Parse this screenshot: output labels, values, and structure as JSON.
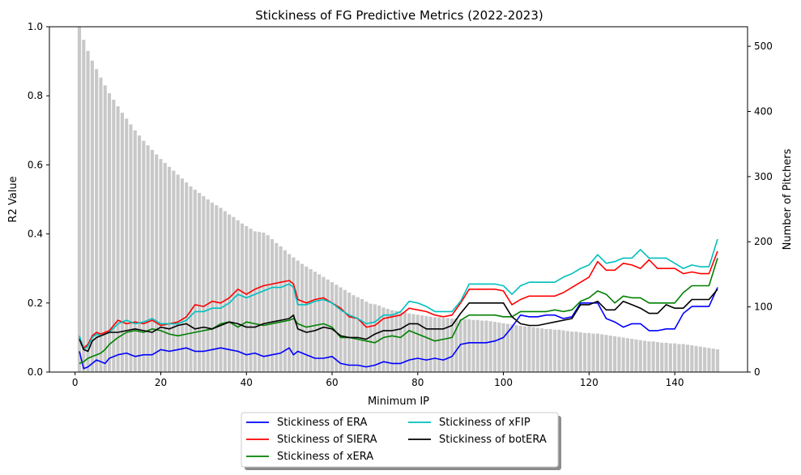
{
  "chart_data": {
    "type": "bar",
    "title": "Stickiness of FG Predictive Metrics (2022-2023)",
    "xlabel": "Minimum IP",
    "ylabel": "R2 Value",
    "ylabel_right": "Number of Pitchers",
    "xlim": [
      -6,
      157
    ],
    "ylim": [
      0,
      1
    ],
    "ylim_right": [
      0,
      530
    ],
    "xticks": [
      "0",
      "20",
      "40",
      "60",
      "80",
      "100",
      "120",
      "140"
    ],
    "yticks": [
      "0.0",
      "0.2",
      "0.4",
      "0.6",
      "0.8",
      "1.0"
    ],
    "yticks_right": [
      "0",
      "100",
      "200",
      "300",
      "400",
      "500"
    ],
    "grid": false,
    "legend_position": "below-center",
    "bars": {
      "name": "Number of Pitchers",
      "color": "#c8c8c8",
      "x_start": 1,
      "x_end": 150,
      "values": [
        530,
        510,
        493,
        478,
        465,
        452,
        440,
        428,
        418,
        408,
        398,
        389,
        380,
        371,
        363,
        355,
        348,
        341,
        334,
        327,
        321,
        315,
        309,
        303,
        297,
        291,
        285,
        280,
        275,
        270,
        265,
        260,
        256,
        252,
        247,
        242,
        238,
        233,
        228,
        224,
        220,
        216,
        215,
        214,
        210,
        204,
        198,
        193,
        187,
        181,
        176,
        171,
        166,
        162,
        158,
        154,
        150,
        146,
        142,
        138,
        134,
        130,
        126,
        122,
        118,
        115,
        112,
        108,
        105,
        104,
        102,
        99,
        97,
        95,
        94,
        93,
        92,
        90,
        89,
        88,
        87,
        86,
        85,
        84,
        84,
        83,
        83,
        82,
        82,
        81,
        81,
        81,
        80,
        80,
        79,
        79,
        78,
        77,
        76,
        75,
        74,
        73,
        72,
        71,
        70,
        70,
        69,
        68,
        67,
        66,
        66,
        65,
        65,
        64,
        63,
        62,
        62,
        61,
        60,
        60,
        59,
        59,
        58,
        57,
        56,
        55,
        54,
        53,
        52,
        51,
        50,
        49,
        48,
        47,
        47,
        46,
        45,
        45,
        44,
        44,
        43,
        43,
        42,
        41,
        40,
        39,
        38,
        37,
        36,
        35
      ]
    },
    "series": [
      {
        "name": "Stickiness of ERA",
        "color": "#0000ff",
        "x": [
          1,
          2,
          3,
          4,
          5,
          6,
          7,
          8,
          10,
          12,
          14,
          16,
          18,
          20,
          22,
          24,
          26,
          28,
          30,
          32,
          34,
          36,
          38,
          40,
          42,
          44,
          46,
          48,
          50,
          51,
          52,
          54,
          56,
          58,
          60,
          62,
          64,
          66,
          68,
          70,
          72,
          74,
          76,
          78,
          80,
          82,
          84,
          86,
          88,
          90,
          92,
          94,
          96,
          98,
          100,
          102,
          104,
          106,
          108,
          110,
          112,
          114,
          116,
          118,
          120,
          122,
          124,
          126,
          128,
          130,
          132,
          134,
          136,
          138,
          140,
          142,
          144,
          146,
          148,
          150
        ],
        "y": [
          0.06,
          0.01,
          0.015,
          0.025,
          0.035,
          0.03,
          0.025,
          0.04,
          0.05,
          0.055,
          0.045,
          0.05,
          0.05,
          0.065,
          0.06,
          0.065,
          0.07,
          0.06,
          0.06,
          0.065,
          0.07,
          0.065,
          0.06,
          0.05,
          0.055,
          0.045,
          0.05,
          0.055,
          0.07,
          0.05,
          0.06,
          0.05,
          0.04,
          0.04,
          0.045,
          0.025,
          0.02,
          0.02,
          0.015,
          0.02,
          0.03,
          0.025,
          0.025,
          0.035,
          0.04,
          0.035,
          0.04,
          0.035,
          0.045,
          0.08,
          0.085,
          0.085,
          0.085,
          0.09,
          0.1,
          0.13,
          0.165,
          0.16,
          0.16,
          0.165,
          0.165,
          0.155,
          0.16,
          0.2,
          0.2,
          0.2,
          0.155,
          0.145,
          0.13,
          0.14,
          0.14,
          0.12,
          0.12,
          0.125,
          0.125,
          0.17,
          0.19,
          0.19,
          0.19,
          0.245
        ]
      },
      {
        "name": "Stickiness of SIERA",
        "color": "#ff0000",
        "x": [
          1,
          2,
          3,
          4,
          5,
          6,
          7,
          8,
          10,
          12,
          14,
          16,
          18,
          20,
          22,
          24,
          26,
          28,
          30,
          32,
          34,
          36,
          38,
          40,
          42,
          44,
          46,
          48,
          50,
          51,
          52,
          54,
          56,
          58,
          60,
          62,
          64,
          66,
          68,
          70,
          72,
          74,
          76,
          78,
          80,
          82,
          84,
          86,
          88,
          90,
          92,
          94,
          96,
          98,
          100,
          102,
          104,
          106,
          108,
          110,
          112,
          114,
          116,
          118,
          120,
          122,
          124,
          126,
          128,
          130,
          132,
          134,
          136,
          138,
          140,
          142,
          144,
          146,
          148,
          150
        ],
        "y": [
          0.1,
          0.07,
          0.08,
          0.105,
          0.115,
          0.11,
          0.115,
          0.12,
          0.15,
          0.14,
          0.145,
          0.14,
          0.15,
          0.135,
          0.14,
          0.145,
          0.16,
          0.195,
          0.19,
          0.205,
          0.2,
          0.215,
          0.24,
          0.225,
          0.24,
          0.25,
          0.255,
          0.26,
          0.265,
          0.255,
          0.21,
          0.2,
          0.21,
          0.215,
          0.2,
          0.185,
          0.16,
          0.155,
          0.13,
          0.135,
          0.155,
          0.16,
          0.165,
          0.185,
          0.18,
          0.175,
          0.165,
          0.16,
          0.165,
          0.2,
          0.24,
          0.24,
          0.24,
          0.24,
          0.235,
          0.195,
          0.21,
          0.22,
          0.22,
          0.22,
          0.22,
          0.23,
          0.245,
          0.26,
          0.275,
          0.32,
          0.295,
          0.295,
          0.315,
          0.31,
          0.3,
          0.325,
          0.3,
          0.3,
          0.3,
          0.285,
          0.29,
          0.285,
          0.285,
          0.35
        ]
      },
      {
        "name": "Stickiness of xERA",
        "color": "#008000",
        "x": [
          1,
          2,
          3,
          4,
          5,
          6,
          7,
          8,
          10,
          12,
          14,
          16,
          18,
          20,
          22,
          24,
          26,
          28,
          30,
          32,
          34,
          36,
          38,
          40,
          42,
          44,
          46,
          48,
          50,
          51,
          52,
          54,
          56,
          58,
          60,
          62,
          64,
          66,
          68,
          70,
          72,
          74,
          76,
          78,
          80,
          82,
          84,
          86,
          88,
          90,
          92,
          94,
          96,
          98,
          100,
          102,
          104,
          106,
          108,
          110,
          112,
          114,
          116,
          118,
          120,
          122,
          124,
          126,
          128,
          130,
          132,
          134,
          136,
          138,
          140,
          142,
          144,
          146,
          148,
          150
        ],
        "y": [
          0.025,
          0.03,
          0.04,
          0.045,
          0.05,
          0.055,
          0.065,
          0.08,
          0.1,
          0.115,
          0.12,
          0.115,
          0.125,
          0.12,
          0.11,
          0.105,
          0.11,
          0.115,
          0.12,
          0.125,
          0.14,
          0.145,
          0.13,
          0.145,
          0.14,
          0.135,
          0.14,
          0.145,
          0.15,
          0.155,
          0.14,
          0.13,
          0.135,
          0.14,
          0.13,
          0.1,
          0.1,
          0.095,
          0.09,
          0.085,
          0.1,
          0.105,
          0.1,
          0.12,
          0.11,
          0.1,
          0.09,
          0.095,
          0.1,
          0.15,
          0.165,
          0.165,
          0.165,
          0.165,
          0.16,
          0.16,
          0.175,
          0.175,
          0.175,
          0.175,
          0.18,
          0.175,
          0.18,
          0.205,
          0.215,
          0.235,
          0.225,
          0.2,
          0.22,
          0.215,
          0.215,
          0.2,
          0.2,
          0.2,
          0.2,
          0.23,
          0.25,
          0.25,
          0.25,
          0.33
        ]
      },
      {
        "name": "Stickiness of xFIP",
        "color": "#00bfbf",
        "x": [
          1,
          2,
          3,
          4,
          5,
          6,
          7,
          8,
          10,
          12,
          14,
          16,
          18,
          20,
          22,
          24,
          26,
          28,
          30,
          32,
          34,
          36,
          38,
          40,
          42,
          44,
          46,
          48,
          50,
          51,
          52,
          54,
          56,
          58,
          60,
          62,
          64,
          66,
          68,
          70,
          72,
          74,
          76,
          78,
          80,
          82,
          84,
          86,
          88,
          90,
          92,
          94,
          96,
          98,
          100,
          102,
          104,
          106,
          108,
          110,
          112,
          114,
          116,
          118,
          120,
          122,
          124,
          126,
          128,
          130,
          132,
          134,
          136,
          138,
          140,
          142,
          144,
          146,
          148,
          150
        ],
        "y": [
          0.105,
          0.065,
          0.075,
          0.1,
          0.11,
          0.105,
          0.11,
          0.115,
          0.14,
          0.15,
          0.14,
          0.145,
          0.155,
          0.14,
          0.14,
          0.14,
          0.15,
          0.175,
          0.175,
          0.185,
          0.185,
          0.2,
          0.225,
          0.215,
          0.225,
          0.235,
          0.245,
          0.245,
          0.255,
          0.245,
          0.195,
          0.195,
          0.205,
          0.21,
          0.2,
          0.18,
          0.165,
          0.155,
          0.14,
          0.145,
          0.165,
          0.165,
          0.175,
          0.205,
          0.2,
          0.19,
          0.175,
          0.175,
          0.175,
          0.205,
          0.255,
          0.255,
          0.255,
          0.255,
          0.25,
          0.225,
          0.25,
          0.26,
          0.26,
          0.26,
          0.26,
          0.275,
          0.285,
          0.3,
          0.31,
          0.34,
          0.315,
          0.32,
          0.33,
          0.33,
          0.355,
          0.33,
          0.33,
          0.33,
          0.315,
          0.3,
          0.31,
          0.305,
          0.305,
          0.385
        ]
      },
      {
        "name": "Stickiness of botERA",
        "color": "#000000",
        "x": [
          1,
          2,
          3,
          4,
          5,
          6,
          7,
          8,
          10,
          12,
          14,
          16,
          18,
          20,
          22,
          24,
          26,
          28,
          30,
          32,
          34,
          36,
          38,
          40,
          42,
          44,
          46,
          48,
          50,
          51,
          52,
          54,
          56,
          58,
          60,
          62,
          64,
          66,
          68,
          70,
          72,
          74,
          76,
          78,
          80,
          82,
          84,
          86,
          88,
          90,
          92,
          94,
          96,
          98,
          100,
          102,
          104,
          106,
          108,
          110,
          112,
          114,
          116,
          118,
          120,
          122,
          124,
          126,
          128,
          130,
          132,
          134,
          136,
          138,
          140,
          142,
          144,
          146,
          148,
          150
        ],
        "y": [
          0.095,
          0.065,
          0.06,
          0.09,
          0.1,
          0.105,
          0.11,
          0.115,
          0.115,
          0.12,
          0.125,
          0.12,
          0.115,
          0.13,
          0.125,
          0.135,
          0.14,
          0.125,
          0.13,
          0.125,
          0.135,
          0.145,
          0.14,
          0.13,
          0.13,
          0.14,
          0.145,
          0.15,
          0.155,
          0.165,
          0.125,
          0.115,
          0.12,
          0.13,
          0.125,
          0.105,
          0.1,
          0.1,
          0.095,
          0.11,
          0.12,
          0.12,
          0.125,
          0.14,
          0.14,
          0.125,
          0.125,
          0.125,
          0.135,
          0.17,
          0.2,
          0.2,
          0.2,
          0.2,
          0.2,
          0.16,
          0.14,
          0.135,
          0.135,
          0.14,
          0.145,
          0.15,
          0.155,
          0.195,
          0.195,
          0.205,
          0.18,
          0.18,
          0.205,
          0.195,
          0.185,
          0.17,
          0.17,
          0.195,
          0.185,
          0.185,
          0.21,
          0.21,
          0.21,
          0.24
        ]
      }
    ]
  }
}
